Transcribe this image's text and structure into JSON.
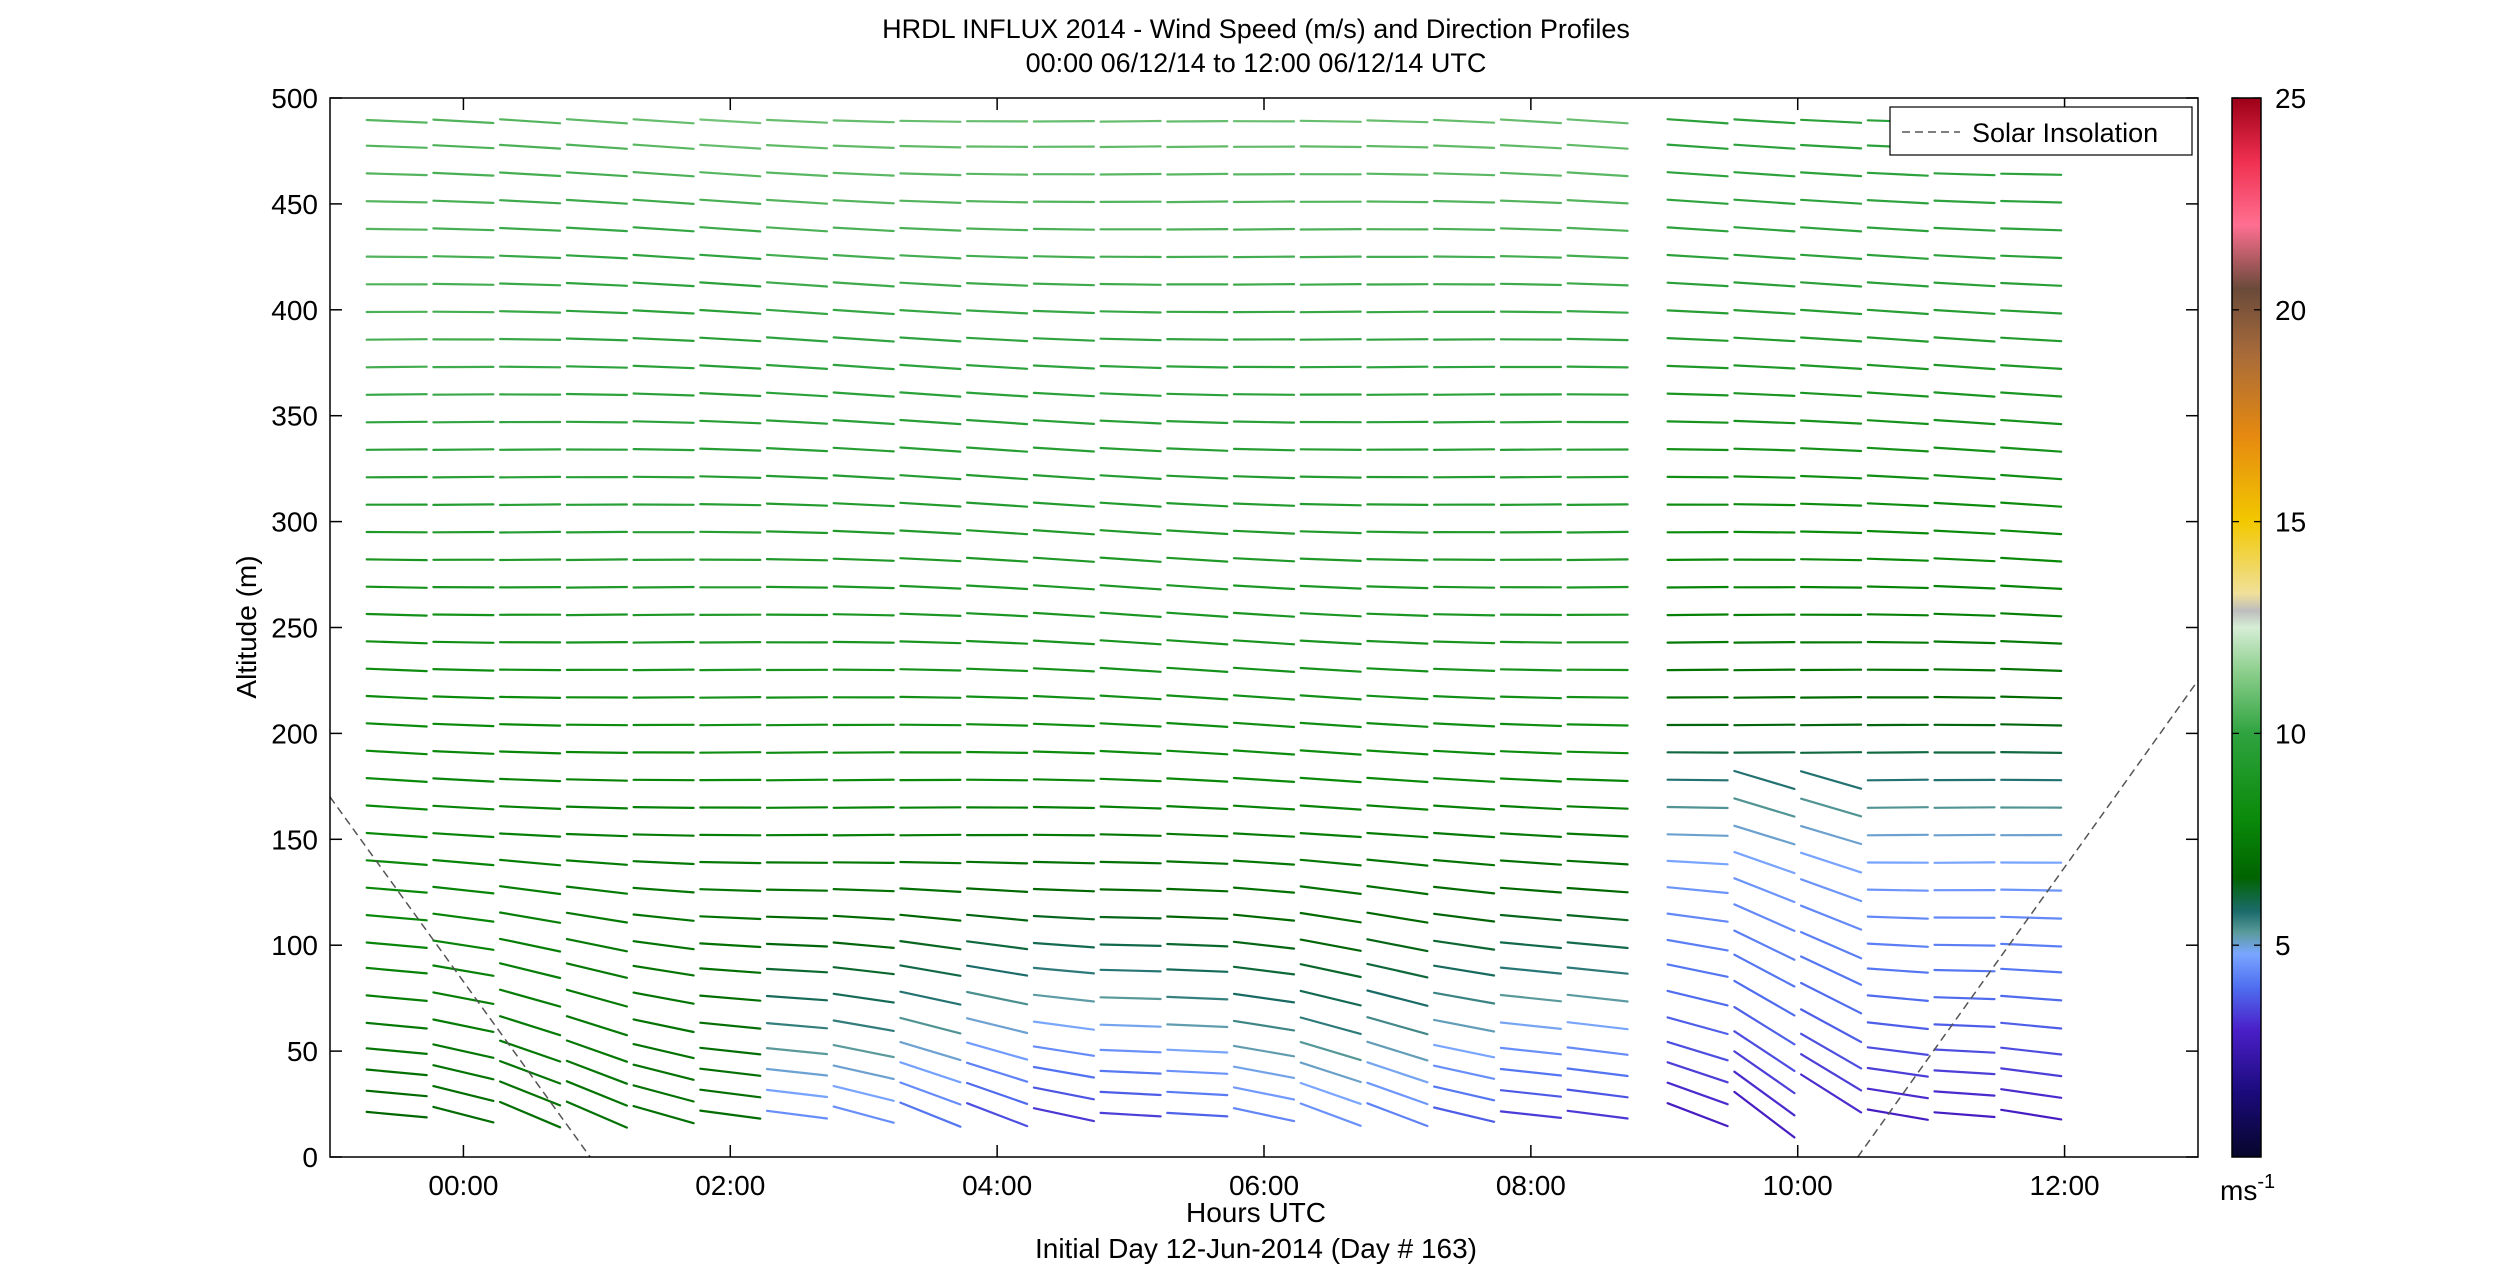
{
  "chart_data": {
    "type": "wind-barb-profile",
    "title": "HRDL INFLUX 2014 - Wind Speed (m/s) and Direction Profiles",
    "subtitle": "00:00 06/12/14 to 12:00 06/12/14  UTC",
    "xlabel": "Hours UTC",
    "xlabel2": "Initial Day 12-Jun-2014 (Day # 163)",
    "ylabel": "Altitude (m)",
    "xlim_hours": [
      -1.0,
      13.0
    ],
    "ylim": [
      0,
      500
    ],
    "x_ticks": [
      {
        "value": 0,
        "label": "00:00"
      },
      {
        "value": 2,
        "label": "02:00"
      },
      {
        "value": 4,
        "label": "04:00"
      },
      {
        "value": 6,
        "label": "06:00"
      },
      {
        "value": 8,
        "label": "08:00"
      },
      {
        "value": 10,
        "label": "10:00"
      },
      {
        "value": 12,
        "label": "12:00"
      }
    ],
    "y_ticks": [
      0,
      50,
      100,
      150,
      200,
      250,
      300,
      350,
      400,
      450,
      500
    ],
    "grid": false,
    "legend": {
      "position": "top-right",
      "entries": [
        {
          "label": "Solar Insolation",
          "style": "dashed",
          "color": "#555555"
        }
      ]
    },
    "colorbar": {
      "min": 0,
      "max": 25,
      "ticks": [
        5,
        10,
        15,
        20,
        25
      ],
      "unit": "ms",
      "unit_exp": "-1",
      "stops": [
        {
          "v": 0,
          "c": "#06062a"
        },
        {
          "v": 1.5,
          "c": "#1a0a7a"
        },
        {
          "v": 3,
          "c": "#4a1fc8"
        },
        {
          "v": 4,
          "c": "#4f6ef0"
        },
        {
          "v": 4.8,
          "c": "#7aa6ff"
        },
        {
          "v": 5.3,
          "c": "#5a9a9a"
        },
        {
          "v": 5.8,
          "c": "#1b6b6b"
        },
        {
          "v": 6.6,
          "c": "#006400"
        },
        {
          "v": 8,
          "c": "#0a8a0a"
        },
        {
          "v": 10,
          "c": "#2fa33f"
        },
        {
          "v": 11.5,
          "c": "#8fd08f"
        },
        {
          "v": 12.5,
          "c": "#d6edd6"
        },
        {
          "v": 12.9,
          "c": "#bdbdbd"
        },
        {
          "v": 13.3,
          "c": "#f0e09a"
        },
        {
          "v": 15,
          "c": "#f2c800"
        },
        {
          "v": 17,
          "c": "#e68a10"
        },
        {
          "v": 19,
          "c": "#a66a3a"
        },
        {
          "v": 20.5,
          "c": "#6a4a3a"
        },
        {
          "v": 22,
          "c": "#ff6f91"
        },
        {
          "v": 23.5,
          "c": "#f03050"
        },
        {
          "v": 25,
          "c": "#9c0018"
        }
      ]
    },
    "altitudes": [
      20,
      30,
      40,
      50,
      62,
      75,
      88,
      100,
      113,
      126,
      139,
      152,
      165,
      178,
      191,
      204,
      217,
      230,
      243,
      256,
      269,
      282,
      295,
      308,
      321,
      334,
      347,
      360,
      373,
      386,
      399,
      412,
      425,
      438,
      451,
      464,
      477,
      489
    ],
    "profile_times_hours": [
      -0.5,
      0,
      0.5,
      1,
      1.5,
      2,
      2.5,
      3,
      3.5,
      4,
      4.5,
      5,
      5.5,
      6,
      6.5,
      7,
      7.5,
      8,
      8.5,
      9.25,
      9.75,
      10.25,
      10.75,
      11.25,
      11.75
    ],
    "solar_insolation": [
      {
        "x": -1.0,
        "y": 170
      },
      {
        "x": 0.95,
        "y": 0
      },
      {
        "x": 10.45,
        "y": 0
      },
      {
        "x": 13.0,
        "y": 225
      }
    ]
  }
}
